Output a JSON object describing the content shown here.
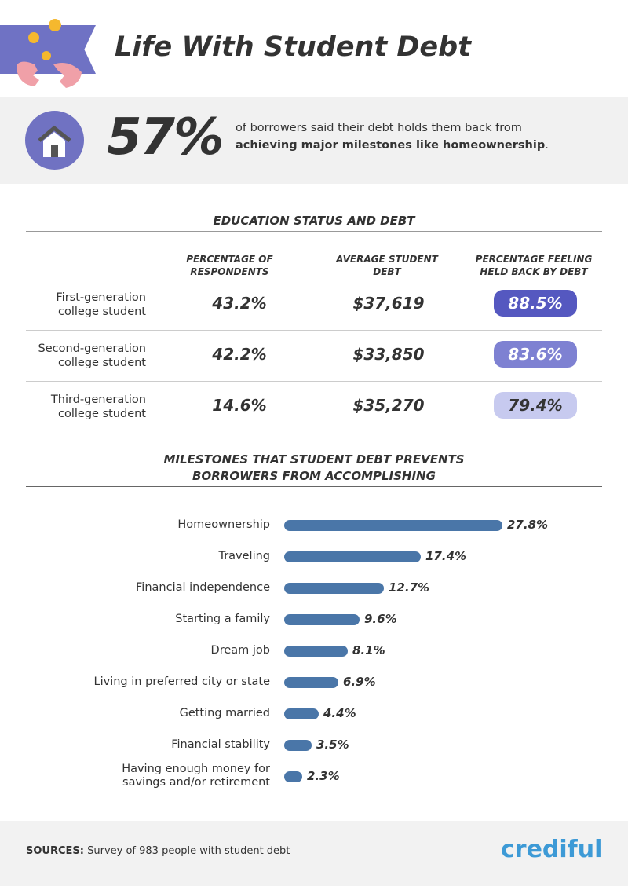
{
  "header": {
    "title": "Life With Student Debt",
    "logo_icon": "broken-piggy-bank-icon"
  },
  "stat": {
    "value": "57%",
    "text_line1": "of borrowers said their debt holds them back from",
    "text_bold": "achieving major milestones like homeownership",
    "text_end": ".",
    "icon": "house-icon"
  },
  "education": {
    "title": "EDUCATION STATUS AND DEBT",
    "headers": [
      "PERCENTAGE OF RESPONDENTS",
      "AVERAGE STUDENT DEBT",
      "PERCENTAGE FEELING HELD BACK BY DEBT"
    ],
    "rows": [
      {
        "label1": "First-generation",
        "label2": "college student",
        "pct": "43.2%",
        "debt": "$37,619",
        "held": "88.5%",
        "color": "#5558c0",
        "text": "#ffffff"
      },
      {
        "label1": "Second-generation",
        "label2": "college student",
        "pct": "42.2%",
        "debt": "$33,850",
        "held": "83.6%",
        "color": "#7e81d2",
        "text": "#ffffff"
      },
      {
        "label1": "Third-generation",
        "label2": "college student",
        "pct": "14.6%",
        "debt": "$35,270",
        "held": "79.4%",
        "color": "#c7caef",
        "text": "#333333"
      }
    ]
  },
  "chart_data": {
    "type": "bar",
    "orientation": "horizontal",
    "title": "MILESTONES THAT STUDENT DEBT PREVENTS BORROWERS FROM ACCOMPLISHING",
    "categories": [
      "Homeownership",
      "Traveling",
      "Financial independence",
      "Starting a family",
      "Dream job",
      "Living in preferred city or state",
      "Getting married",
      "Financial stability",
      "Having enough money for savings and/or retirement"
    ],
    "values": [
      27.8,
      17.4,
      12.7,
      9.6,
      8.1,
      6.9,
      4.4,
      3.5,
      2.3
    ],
    "labels": [
      "27.8%",
      "17.4%",
      "12.7%",
      "9.6%",
      "8.1%",
      "6.9%",
      "4.4%",
      "3.5%",
      "2.3%"
    ],
    "color": "#4a76a8"
  },
  "footer": {
    "sources_label": "SOURCES:",
    "sources_text": "Survey of 983 people with student debt",
    "brand": "crediful"
  }
}
